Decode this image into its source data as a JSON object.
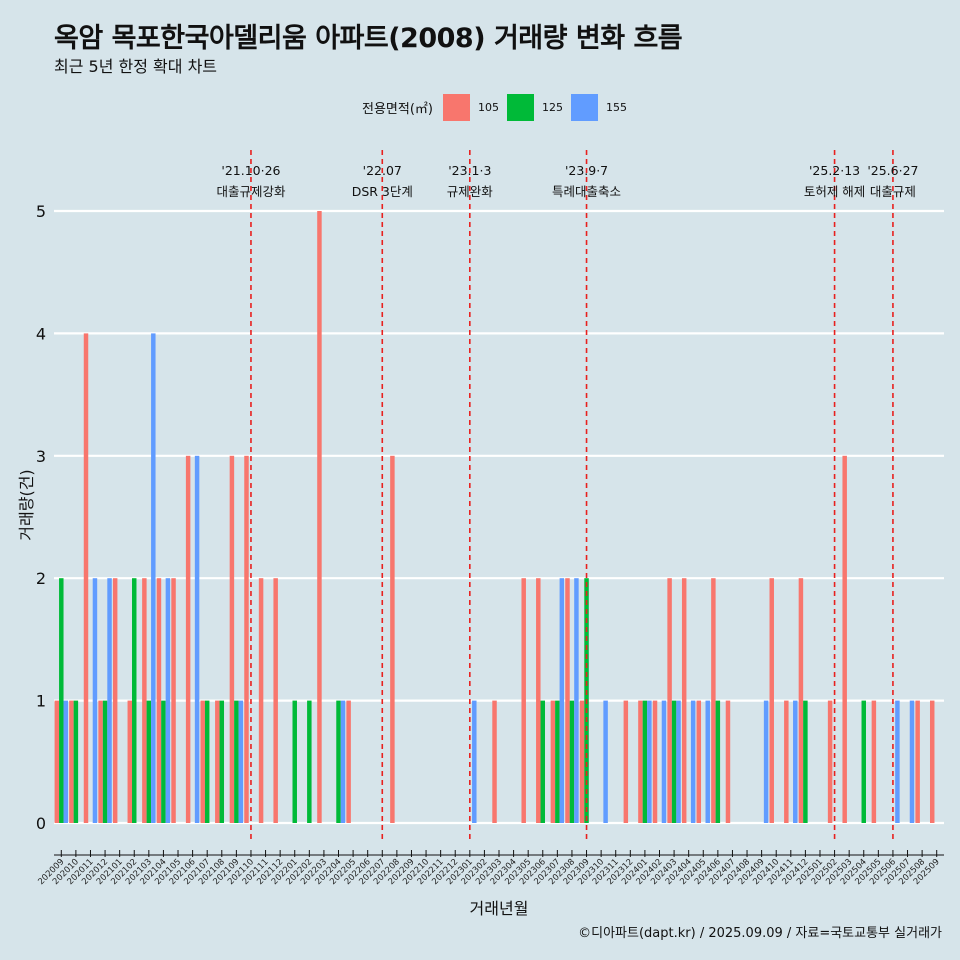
{
  "title": "옥암 목포한국아델리움 아파트(2008) 거래량 변화 흐름",
  "subtitle": "최근 5년 한정 확대 차트",
  "caption": "©디아파트(dapt.kr) / 2025.09.09 / 자료=국토교통부 실거래가",
  "legend": {
    "title": "전용면적(㎡)",
    "items": [
      {
        "label": "105",
        "color": "#f8766d"
      },
      {
        "label": "125",
        "color": "#00ba38"
      },
      {
        "label": "155",
        "color": "#619cff"
      }
    ]
  },
  "chart_data": {
    "type": "bar",
    "xlabel": "거래년월",
    "ylabel": "거래량(건)",
    "ylim": [
      0,
      5
    ],
    "yticks": [
      0,
      1,
      2,
      3,
      4,
      5
    ],
    "categories": [
      "202009",
      "202010",
      "202011",
      "202012",
      "202101",
      "202102",
      "202103",
      "202104",
      "202105",
      "202106",
      "202107",
      "202108",
      "202109",
      "202110",
      "202111",
      "202112",
      "202201",
      "202202",
      "202203",
      "202204",
      "202205",
      "202206",
      "202207",
      "202208",
      "202209",
      "202210",
      "202211",
      "202212",
      "202301",
      "202302",
      "202303",
      "202304",
      "202305",
      "202306",
      "202307",
      "202308",
      "202309",
      "202310",
      "202311",
      "202312",
      "202401",
      "202402",
      "202403",
      "202404",
      "202405",
      "202406",
      "202407",
      "202408",
      "202409",
      "202410",
      "202411",
      "202412",
      "202501",
      "202502",
      "202503",
      "202504",
      "202505",
      "202506",
      "202507",
      "202508",
      "202509"
    ],
    "series": [
      {
        "name": "105",
        "color": "#f8766d",
        "values": [
          1,
          1,
          4,
          1,
          2,
          1,
          2,
          2,
          2,
          3,
          1,
          1,
          3,
          3,
          2,
          2,
          0,
          0,
          5,
          0,
          1,
          0,
          0,
          3,
          0,
          0,
          0,
          0,
          0,
          0,
          1,
          0,
          2,
          2,
          1,
          2,
          1,
          0,
          0,
          1,
          1,
          1,
          2,
          2,
          1,
          2,
          1,
          0,
          0,
          2,
          1,
          2,
          0,
          1,
          3,
          0,
          1,
          0,
          0,
          1,
          1
        ]
      },
      {
        "name": "125",
        "color": "#00ba38",
        "values": [
          2,
          1,
          0,
          1,
          0,
          2,
          1,
          1,
          0,
          0,
          1,
          1,
          1,
          0,
          0,
          0,
          1,
          1,
          0,
          1,
          0,
          0,
          0,
          0,
          0,
          0,
          0,
          0,
          0,
          0,
          0,
          0,
          0,
          1,
          1,
          1,
          2,
          0,
          0,
          0,
          1,
          0,
          1,
          0,
          0,
          1,
          0,
          0,
          0,
          0,
          0,
          1,
          0,
          0,
          0,
          1,
          0,
          0,
          0,
          0,
          0
        ]
      },
      {
        "name": "155",
        "color": "#619cff",
        "values": [
          1,
          0,
          2,
          2,
          0,
          0,
          4,
          2,
          0,
          3,
          0,
          0,
          1,
          0,
          0,
          0,
          0,
          0,
          0,
          1,
          0,
          0,
          0,
          0,
          0,
          0,
          0,
          0,
          1,
          0,
          0,
          0,
          0,
          0,
          2,
          2,
          0,
          1,
          0,
          0,
          1,
          1,
          1,
          1,
          1,
          0,
          0,
          0,
          1,
          0,
          1,
          0,
          0,
          0,
          0,
          0,
          0,
          1,
          1,
          0,
          0
        ]
      }
    ],
    "events": [
      {
        "category": "202110",
        "date": "'21.10·26",
        "label": "대출규제강화"
      },
      {
        "category": "202207",
        "date": "'22.07",
        "label": "DSR 3단계"
      },
      {
        "category": "202301",
        "date": "'23.1·3",
        "label": "규제완화"
      },
      {
        "category": "202309",
        "date": "'23.9·7",
        "label": "특례대출축소"
      },
      {
        "category": "202502",
        "date": "'25.2·13",
        "label": "토허제 해제"
      },
      {
        "category": "202506",
        "date": "'25.6·27",
        "label": "대출규제"
      }
    ]
  }
}
